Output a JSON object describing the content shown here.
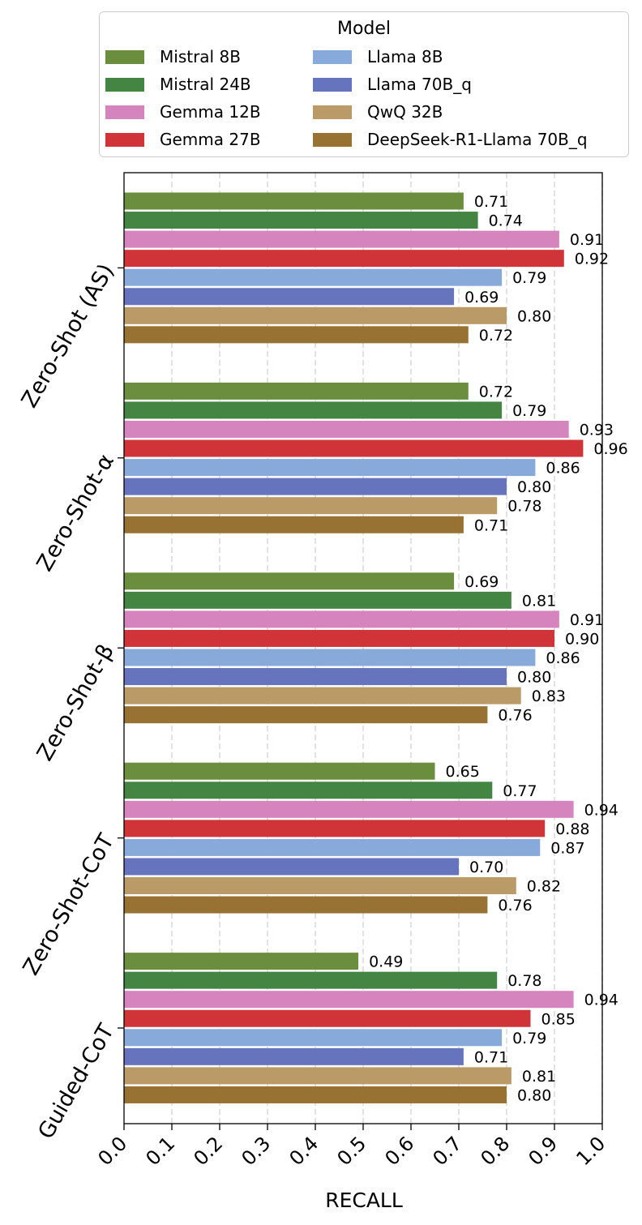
{
  "chart_data": {
    "type": "bar",
    "orientation": "horizontal",
    "xlabel": "RECALL",
    "ylabel": "",
    "xlim": [
      0.0,
      1.0
    ],
    "x_ticks": [
      "0.0",
      "0.1",
      "0.2",
      "0.3",
      "0.4",
      "0.5",
      "0.6",
      "0.7",
      "0.8",
      "0.9",
      "1.0"
    ],
    "grid": "vertical dashed",
    "legend_title": "Model",
    "legend_position": "top",
    "categories": [
      "Zero-Shot (AS)",
      "Zero-Shot-α",
      "Zero-Shot-β",
      "Zero-Shot-CoT",
      "Guided-CoT"
    ],
    "series": [
      {
        "name": "Mistral 8B",
        "color": "#6b8e3e",
        "values": [
          0.71,
          0.72,
          0.69,
          0.65,
          0.49
        ],
        "labels": [
          "0.71",
          "0.72",
          "0.69",
          "0.65",
          "0.49"
        ]
      },
      {
        "name": "Mistral 24B",
        "color": "#458544",
        "values": [
          0.74,
          0.79,
          0.81,
          0.77,
          0.78
        ],
        "labels": [
          "0.74",
          "0.79",
          "0.81",
          "0.77",
          "0.78"
        ]
      },
      {
        "name": "Gemma 12B",
        "color": "#d584be",
        "values": [
          0.91,
          0.93,
          0.91,
          0.94,
          0.94
        ],
        "labels": [
          "0.91",
          "0.93",
          "0.91",
          "0.94",
          "0.94"
        ]
      },
      {
        "name": "Gemma 27B",
        "color": "#d03439",
        "values": [
          0.92,
          0.96,
          0.9,
          0.88,
          0.85
        ],
        "labels": [
          "0.92",
          "0.96",
          "0.90",
          "0.88",
          "0.85"
        ]
      },
      {
        "name": "Llama 8B",
        "color": "#88aadb",
        "values": [
          0.79,
          0.86,
          0.86,
          0.87,
          0.79
        ],
        "labels": [
          "0.79",
          "0.86",
          "0.86",
          "0.87",
          "0.79"
        ]
      },
      {
        "name": "Llama 70B_q",
        "color": "#6674bd",
        "values": [
          0.69,
          0.8,
          0.8,
          0.7,
          0.71
        ],
        "labels": [
          "0.69",
          "0.80",
          "0.80",
          "0.70",
          "0.71"
        ]
      },
      {
        "name": "QwQ 32B",
        "color": "#ba9b68",
        "values": [
          0.8,
          0.78,
          0.83,
          0.82,
          0.81
        ],
        "labels": [
          "0.80",
          "0.78",
          "0.83",
          "0.82",
          "0.81"
        ]
      },
      {
        "name": "DeepSeek-R1-Llama 70B_q",
        "color": "#977233",
        "values": [
          0.72,
          0.71,
          0.76,
          0.76,
          0.8
        ],
        "labels": [
          "0.72",
          "0.71",
          "0.76",
          "0.76",
          "0.80"
        ]
      }
    ]
  }
}
